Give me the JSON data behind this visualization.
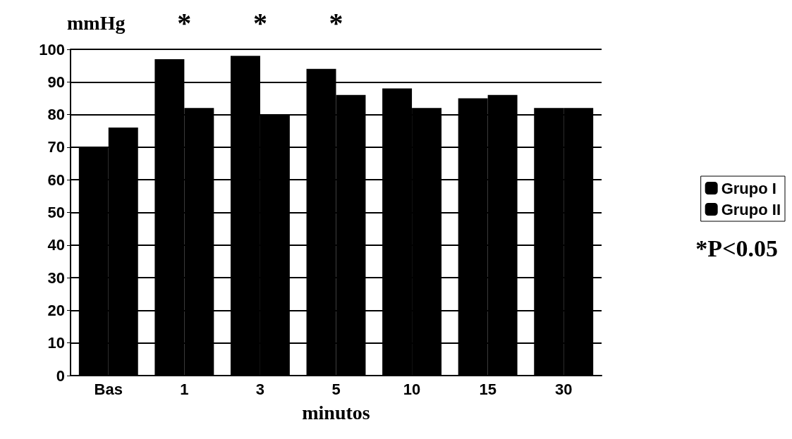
{
  "chart_data": {
    "type": "bar",
    "ylabel": "mmHg",
    "xlabel": "minutos",
    "categories": [
      "Bas",
      "1",
      "3",
      "5",
      "10",
      "15",
      "30"
    ],
    "series": [
      {
        "name": "Grupo I",
        "color": "#000000",
        "values": [
          70,
          97,
          98,
          94,
          88,
          85,
          82
        ]
      },
      {
        "name": "Grupo II",
        "color": "#000000",
        "values": [
          76,
          82,
          80,
          86,
          82,
          86,
          82
        ]
      }
    ],
    "ylim": [
      0,
      100
    ],
    "yticks": [
      0,
      10,
      20,
      30,
      40,
      50,
      60,
      70,
      80,
      90,
      100
    ],
    "grid": "y",
    "legend": "right",
    "annotations": [
      "*",
      "*",
      "*",
      "*P<0.05"
    ]
  }
}
